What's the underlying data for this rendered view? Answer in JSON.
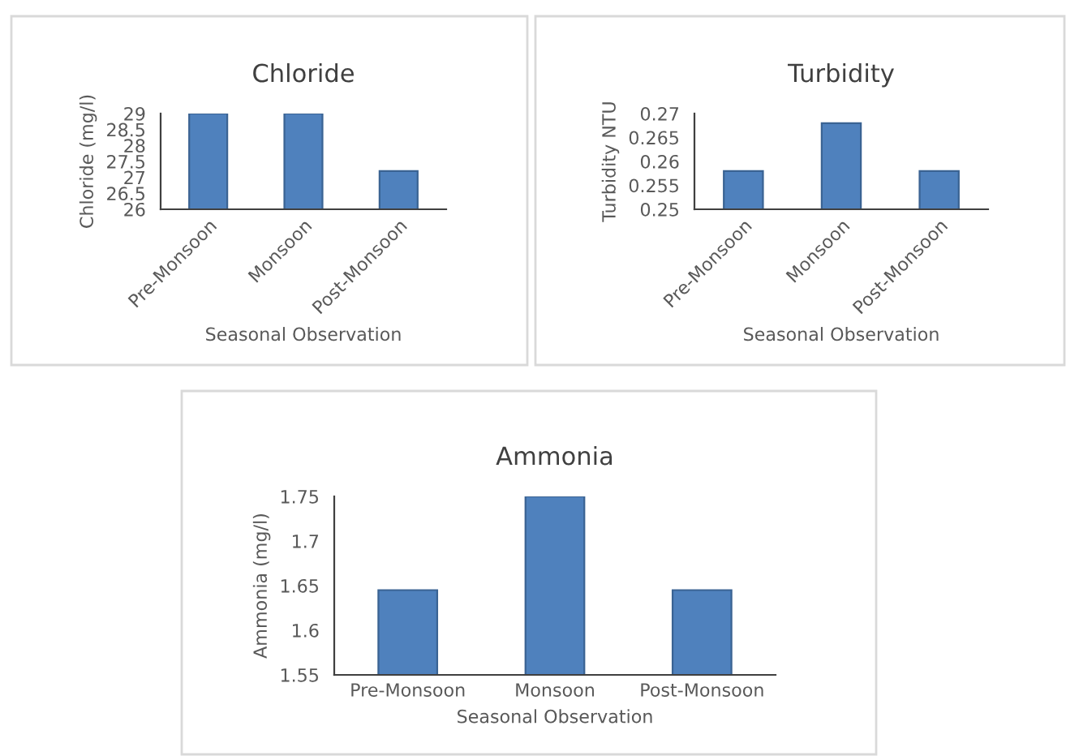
{
  "chart_data": [
    {
      "type": "bar",
      "title": "Chloride",
      "xlabel": "Seasonal Observation",
      "ylabel": "Chloride (mg/l)",
      "categories": [
        "Pre-Monsoon",
        "Monsoon",
        "Post-Monsoon"
      ],
      "values": [
        29,
        29,
        27.2
      ],
      "color": "#4f81bd",
      "ylim": [
        26,
        29
      ],
      "yticks": [
        26,
        {
          "value": 26.5,
          "label": "26.5"
        },
        27,
        {
          "value": 27.5,
          "label": "27.5"
        },
        28,
        {
          "value": 28.5,
          "label": "28.5"
        },
        29
      ]
    },
    {
      "type": "bar",
      "title": "Turbidity",
      "xlabel": "Seasonal Observation",
      "ylabel": "Turbidity NTU",
      "categories": [
        "Pre-Monsoon",
        "Monsoon",
        "Post-Monsoon"
      ],
      "values": [
        0.258,
        0.268,
        0.258
      ],
      "color": "#4f81bd",
      "ylim": [
        0.25,
        0.27
      ],
      "yticks": [
        0.25,
        0.255,
        0.26,
        0.265,
        0.27
      ]
    },
    {
      "type": "bar",
      "title": "Ammonia",
      "xlabel": "Seasonal Observation",
      "ylabel": "Ammonia (mg/l)",
      "categories": [
        "Pre-Monsoon",
        "Monsoon",
        "Post-Monsoon"
      ],
      "values": [
        1.645,
        1.75,
        1.645
      ],
      "color": "#4f81bd",
      "ylim": [
        1.55,
        1.75
      ],
      "yticks": [
        1.55,
        1.6,
        1.65,
        1.7,
        1.75
      ]
    }
  ]
}
